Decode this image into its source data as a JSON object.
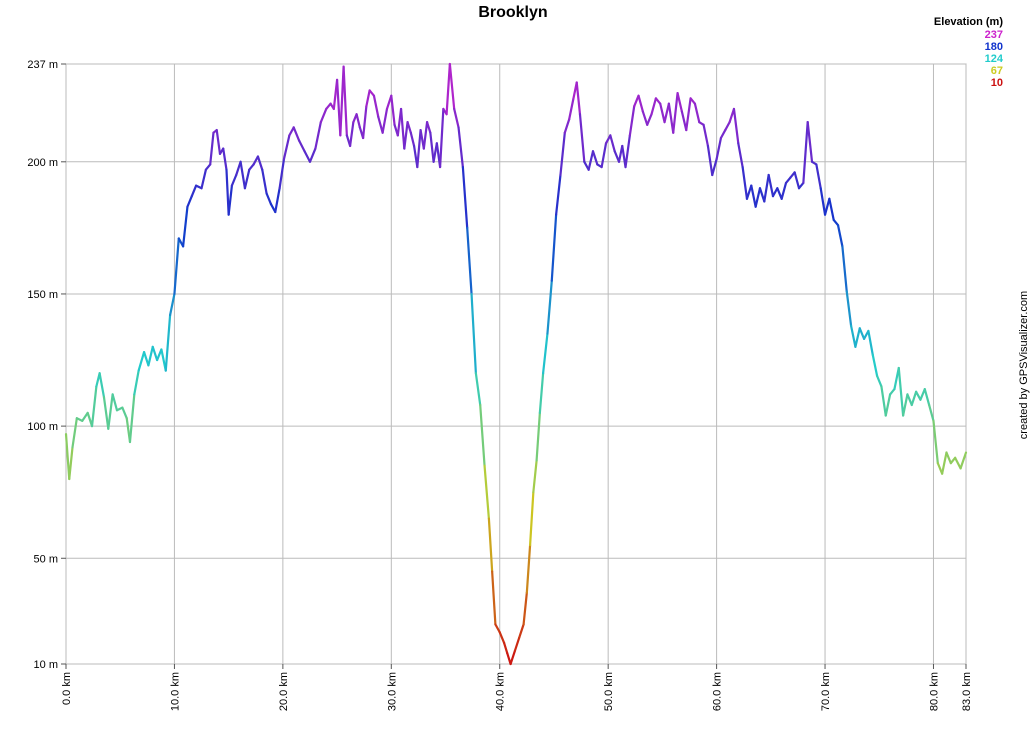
{
  "chart_data": {
    "type": "line",
    "title": "Brooklyn",
    "x_unit": "km",
    "y_unit": "m",
    "xlim": [
      0,
      83
    ],
    "ylim": [
      10,
      237
    ],
    "x_ticks": [
      "0.0 km",
      "10.0 km",
      "20.0 km",
      "30.0 km",
      "40.0 km",
      "50.0 km",
      "60.0 km",
      "70.0 km",
      "80.0 km",
      "83.0 km"
    ],
    "x_tick_values": [
      0,
      10,
      20,
      30,
      40,
      50,
      60,
      70,
      80,
      83
    ],
    "y_ticks": [
      "10 m",
      "50 m",
      "100 m",
      "150 m",
      "200 m",
      "237 m"
    ],
    "y_tick_values": [
      10,
      50,
      100,
      150,
      200,
      237
    ],
    "grid": true,
    "legend": {
      "title": "Elevation (m)",
      "placement": "top-right",
      "items": [
        {
          "label": "237",
          "color": "#cc22cc"
        },
        {
          "label": "180",
          "color": "#1133cc"
        },
        {
          "label": "124",
          "color": "#22cccc"
        },
        {
          "label": "67",
          "color": "#cccc22"
        },
        {
          "label": "10",
          "color": "#cc1111"
        }
      ]
    },
    "credit": "created by GPSVisualizer.com",
    "series": [
      {
        "points": [
          [
            0,
            97
          ],
          [
            0.3,
            80
          ],
          [
            0.6,
            92
          ],
          [
            1.0,
            103
          ],
          [
            1.5,
            102
          ],
          [
            2.0,
            105
          ],
          [
            2.4,
            100
          ],
          [
            2.8,
            115
          ],
          [
            3.1,
            120
          ],
          [
            3.5,
            111
          ],
          [
            3.9,
            99
          ],
          [
            4.3,
            112
          ],
          [
            4.7,
            106
          ],
          [
            5.2,
            107
          ],
          [
            5.6,
            103
          ],
          [
            5.9,
            94
          ],
          [
            6.3,
            112
          ],
          [
            6.7,
            121
          ],
          [
            7.2,
            128
          ],
          [
            7.6,
            123
          ],
          [
            8.0,
            130
          ],
          [
            8.4,
            125
          ],
          [
            8.8,
            129
          ],
          [
            9.2,
            121
          ],
          [
            9.6,
            142
          ],
          [
            10.0,
            150
          ],
          [
            10.4,
            171
          ],
          [
            10.8,
            168
          ],
          [
            11.2,
            183
          ],
          [
            11.6,
            187
          ],
          [
            12.0,
            191
          ],
          [
            12.5,
            190
          ],
          [
            12.9,
            197
          ],
          [
            13.3,
            199
          ],
          [
            13.6,
            211
          ],
          [
            13.9,
            212
          ],
          [
            14.2,
            203
          ],
          [
            14.5,
            205
          ],
          [
            14.8,
            197
          ],
          [
            15.0,
            180
          ],
          [
            15.3,
            191
          ],
          [
            15.7,
            195
          ],
          [
            16.1,
            200
          ],
          [
            16.5,
            190
          ],
          [
            16.9,
            197
          ],
          [
            17.3,
            199
          ],
          [
            17.7,
            202
          ],
          [
            18.1,
            197
          ],
          [
            18.5,
            188
          ],
          [
            18.9,
            184
          ],
          [
            19.3,
            181
          ],
          [
            19.7,
            190
          ],
          [
            20.1,
            201
          ],
          [
            20.6,
            210
          ],
          [
            21.0,
            213
          ],
          [
            21.5,
            208
          ],
          [
            22.0,
            204
          ],
          [
            22.5,
            200
          ],
          [
            23.0,
            205
          ],
          [
            23.5,
            215
          ],
          [
            24.0,
            220
          ],
          [
            24.4,
            222
          ],
          [
            24.7,
            220
          ],
          [
            25.0,
            231
          ],
          [
            25.3,
            210
          ],
          [
            25.6,
            236
          ],
          [
            25.9,
            210
          ],
          [
            26.2,
            206
          ],
          [
            26.5,
            215
          ],
          [
            26.8,
            218
          ],
          [
            27.1,
            213
          ],
          [
            27.4,
            209
          ],
          [
            27.7,
            221
          ],
          [
            28.0,
            227
          ],
          [
            28.4,
            225
          ],
          [
            28.8,
            217
          ],
          [
            29.2,
            211
          ],
          [
            29.6,
            220
          ],
          [
            30.0,
            225
          ],
          [
            30.3,
            214
          ],
          [
            30.6,
            210
          ],
          [
            30.9,
            220
          ],
          [
            31.2,
            205
          ],
          [
            31.5,
            215
          ],
          [
            31.8,
            211
          ],
          [
            32.1,
            206
          ],
          [
            32.4,
            198
          ],
          [
            32.7,
            212
          ],
          [
            33.0,
            205
          ],
          [
            33.3,
            215
          ],
          [
            33.6,
            211
          ],
          [
            33.9,
            200
          ],
          [
            34.2,
            207
          ],
          [
            34.5,
            198
          ],
          [
            34.8,
            220
          ],
          [
            35.1,
            218
          ],
          [
            35.4,
            237
          ],
          [
            35.8,
            220
          ],
          [
            36.2,
            213
          ],
          [
            36.6,
            198
          ],
          [
            37.0,
            175
          ],
          [
            37.4,
            150
          ],
          [
            37.8,
            120
          ],
          [
            38.2,
            108
          ],
          [
            38.6,
            85
          ],
          [
            39.0,
            65
          ],
          [
            39.3,
            45
          ],
          [
            39.6,
            25
          ],
          [
            40.0,
            22
          ],
          [
            40.4,
            18
          ],
          [
            40.7,
            14
          ],
          [
            41.0,
            10
          ],
          [
            41.4,
            15
          ],
          [
            41.8,
            20
          ],
          [
            42.2,
            25
          ],
          [
            42.5,
            37
          ],
          [
            42.8,
            55
          ],
          [
            43.1,
            75
          ],
          [
            43.4,
            87
          ],
          [
            43.7,
            105
          ],
          [
            44.0,
            120
          ],
          [
            44.4,
            135
          ],
          [
            44.8,
            155
          ],
          [
            45.2,
            180
          ],
          [
            45.6,
            195
          ],
          [
            46.0,
            211
          ],
          [
            46.4,
            216
          ],
          [
            46.8,
            224
          ],
          [
            47.1,
            230
          ],
          [
            47.4,
            218
          ],
          [
            47.8,
            200
          ],
          [
            48.2,
            197
          ],
          [
            48.6,
            204
          ],
          [
            49.0,
            199
          ],
          [
            49.4,
            198
          ],
          [
            49.8,
            207
          ],
          [
            50.2,
            210
          ],
          [
            50.6,
            204
          ],
          [
            51.0,
            200
          ],
          [
            51.3,
            206
          ],
          [
            51.6,
            198
          ],
          [
            52.0,
            210
          ],
          [
            52.4,
            221
          ],
          [
            52.8,
            225
          ],
          [
            53.2,
            219
          ],
          [
            53.6,
            214
          ],
          [
            54.0,
            218
          ],
          [
            54.4,
            224
          ],
          [
            54.8,
            222
          ],
          [
            55.2,
            215
          ],
          [
            55.6,
            222
          ],
          [
            56.0,
            211
          ],
          [
            56.4,
            226
          ],
          [
            56.8,
            219
          ],
          [
            57.2,
            212
          ],
          [
            57.6,
            224
          ],
          [
            58.0,
            222
          ],
          [
            58.4,
            215
          ],
          [
            58.8,
            214
          ],
          [
            59.2,
            206
          ],
          [
            59.6,
            195
          ],
          [
            60.0,
            201
          ],
          [
            60.4,
            209
          ],
          [
            60.8,
            212
          ],
          [
            61.2,
            215
          ],
          [
            61.6,
            220
          ],
          [
            62.0,
            207
          ],
          [
            62.4,
            198
          ],
          [
            62.8,
            186
          ],
          [
            63.2,
            191
          ],
          [
            63.6,
            183
          ],
          [
            64.0,
            190
          ],
          [
            64.4,
            185
          ],
          [
            64.8,
            195
          ],
          [
            65.2,
            187
          ],
          [
            65.6,
            190
          ],
          [
            66.0,
            186
          ],
          [
            66.4,
            192
          ],
          [
            66.8,
            194
          ],
          [
            67.2,
            196
          ],
          [
            67.6,
            190
          ],
          [
            68.0,
            192
          ],
          [
            68.4,
            215
          ],
          [
            68.8,
            200
          ],
          [
            69.2,
            199
          ],
          [
            69.6,
            190
          ],
          [
            70.0,
            180
          ],
          [
            70.4,
            186
          ],
          [
            70.8,
            178
          ],
          [
            71.2,
            176
          ],
          [
            71.6,
            168
          ],
          [
            72.0,
            151
          ],
          [
            72.4,
            138
          ],
          [
            72.8,
            130
          ],
          [
            73.2,
            137
          ],
          [
            73.6,
            133
          ],
          [
            74.0,
            136
          ],
          [
            74.4,
            127
          ],
          [
            74.8,
            119
          ],
          [
            75.2,
            115
          ],
          [
            75.6,
            104
          ],
          [
            76.0,
            112
          ],
          [
            76.4,
            114
          ],
          [
            76.8,
            122
          ],
          [
            77.2,
            104
          ],
          [
            77.6,
            112
          ],
          [
            78.0,
            108
          ],
          [
            78.4,
            113
          ],
          [
            78.8,
            110
          ],
          [
            79.2,
            114
          ],
          [
            79.6,
            108
          ],
          [
            80.0,
            102
          ],
          [
            80.4,
            86
          ],
          [
            80.8,
            82
          ],
          [
            81.2,
            90
          ],
          [
            81.6,
            86
          ],
          [
            82.0,
            88
          ],
          [
            82.5,
            84
          ],
          [
            83.0,
            90
          ]
        ]
      }
    ]
  }
}
